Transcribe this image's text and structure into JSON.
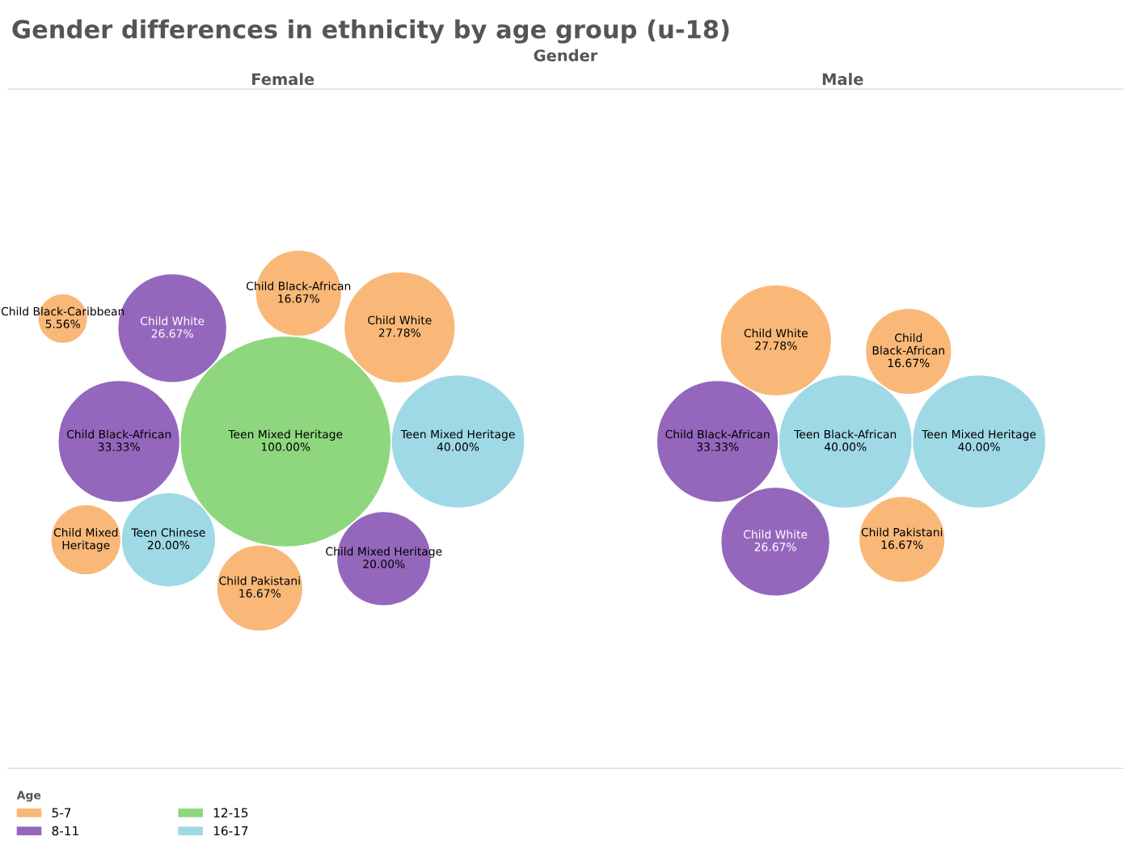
{
  "chart_data": [
    {
      "type": "other",
      "title": "Gender differences in ethnicity by age group (u-18)",
      "subtitle": "Gender",
      "xlabel": "Female",
      "legend_title": "Age",
      "legend": "bottom left",
      "categories": [
        "Teen Mixed Heritage",
        "Teen Chinese",
        "Teen Mixed Heritage",
        "Child Pakistani",
        "Child Black-African",
        "Child Black-Caribbean",
        "Child White",
        "Child Mixed\nHeritage",
        "Child White",
        "Child Mixed Heritage",
        "Child Black-African"
      ],
      "colors": [
        "#8fd77f",
        "#9fd9e6",
        "#9fd9e6",
        "#f9b878",
        "#f9b878",
        "#f9b878",
        "#f9b878",
        "#f9b878",
        "#9467bd",
        "#9467bd",
        "#9467bd"
      ],
      "series": [
        {
          "name": "5-7",
          "color": "#f9b878",
          "values": [
            null,
            null,
            null,
            16.67,
            16.67,
            5.56,
            27.78,
            null,
            null,
            null,
            null
          ],
          "value_labels": [
            null,
            null,
            null,
            "16.67%",
            "16.67%",
            "5.56%",
            "27.78%",
            null,
            null,
            null,
            null
          ]
        },
        {
          "name": "8-11",
          "color": "#9467bd",
          "values": [
            null,
            null,
            null,
            null,
            null,
            null,
            null,
            null,
            26.67,
            20.0,
            33.33
          ],
          "value_labels": [
            null,
            null,
            null,
            null,
            null,
            null,
            null,
            null,
            "26.67%",
            "20.00%",
            "33.33%"
          ]
        },
        {
          "name": "12-15",
          "color": "#8fd77f",
          "values": [
            100.0,
            null,
            null,
            null,
            null,
            null,
            null,
            null,
            null,
            null,
            null
          ],
          "value_labels": [
            "100.00%",
            null,
            null,
            null,
            null,
            null,
            null,
            null,
            null,
            null,
            null
          ]
        },
        {
          "name": "16-17",
          "color": "#9fd9e6",
          "values": [
            null,
            20.0,
            40.0,
            null,
            null,
            null,
            null,
            null,
            null,
            null,
            null
          ],
          "value_labels": [
            null,
            "20.00%",
            "40.00%",
            null,
            null,
            null,
            null,
            null,
            null,
            null,
            null
          ]
        }
      ]
    },
    {
      "type": "other",
      "xlabel": "Male",
      "categories": [
        "Teen Black-African",
        "Child White",
        "Teen Mixed Heritage",
        "Child\nBlack-African",
        "Child Pakistani",
        "Child Black-African",
        "Child White"
      ],
      "colors": [
        "#9fd9e6",
        "#9467bd",
        "#9fd9e6",
        "#f9b878",
        "#f9b878",
        "#9467bd",
        "#f9b878"
      ],
      "series": [
        {
          "color": "#f9b878",
          "values": [
            null,
            null,
            null,
            16.67,
            16.67,
            null,
            27.78
          ],
          "value_labels": [
            null,
            null,
            null,
            "16.67%",
            "16.67%",
            null,
            "27.78%"
          ]
        },
        {
          "color": "#9467bd",
          "values": [
            null,
            26.67,
            null,
            null,
            null,
            33.33,
            null
          ],
          "value_labels": [
            null,
            "26.67%",
            null,
            null,
            null,
            "33.33%",
            null
          ]
        },
        {
          "color": "#9fd9e6",
          "values": [
            40.0,
            null,
            40.0,
            null,
            null,
            null,
            null
          ],
          "value_labels": [
            "40.00%",
            null,
            "40.00%",
            null,
            null,
            null,
            null
          ]
        }
      ]
    }
  ]
}
